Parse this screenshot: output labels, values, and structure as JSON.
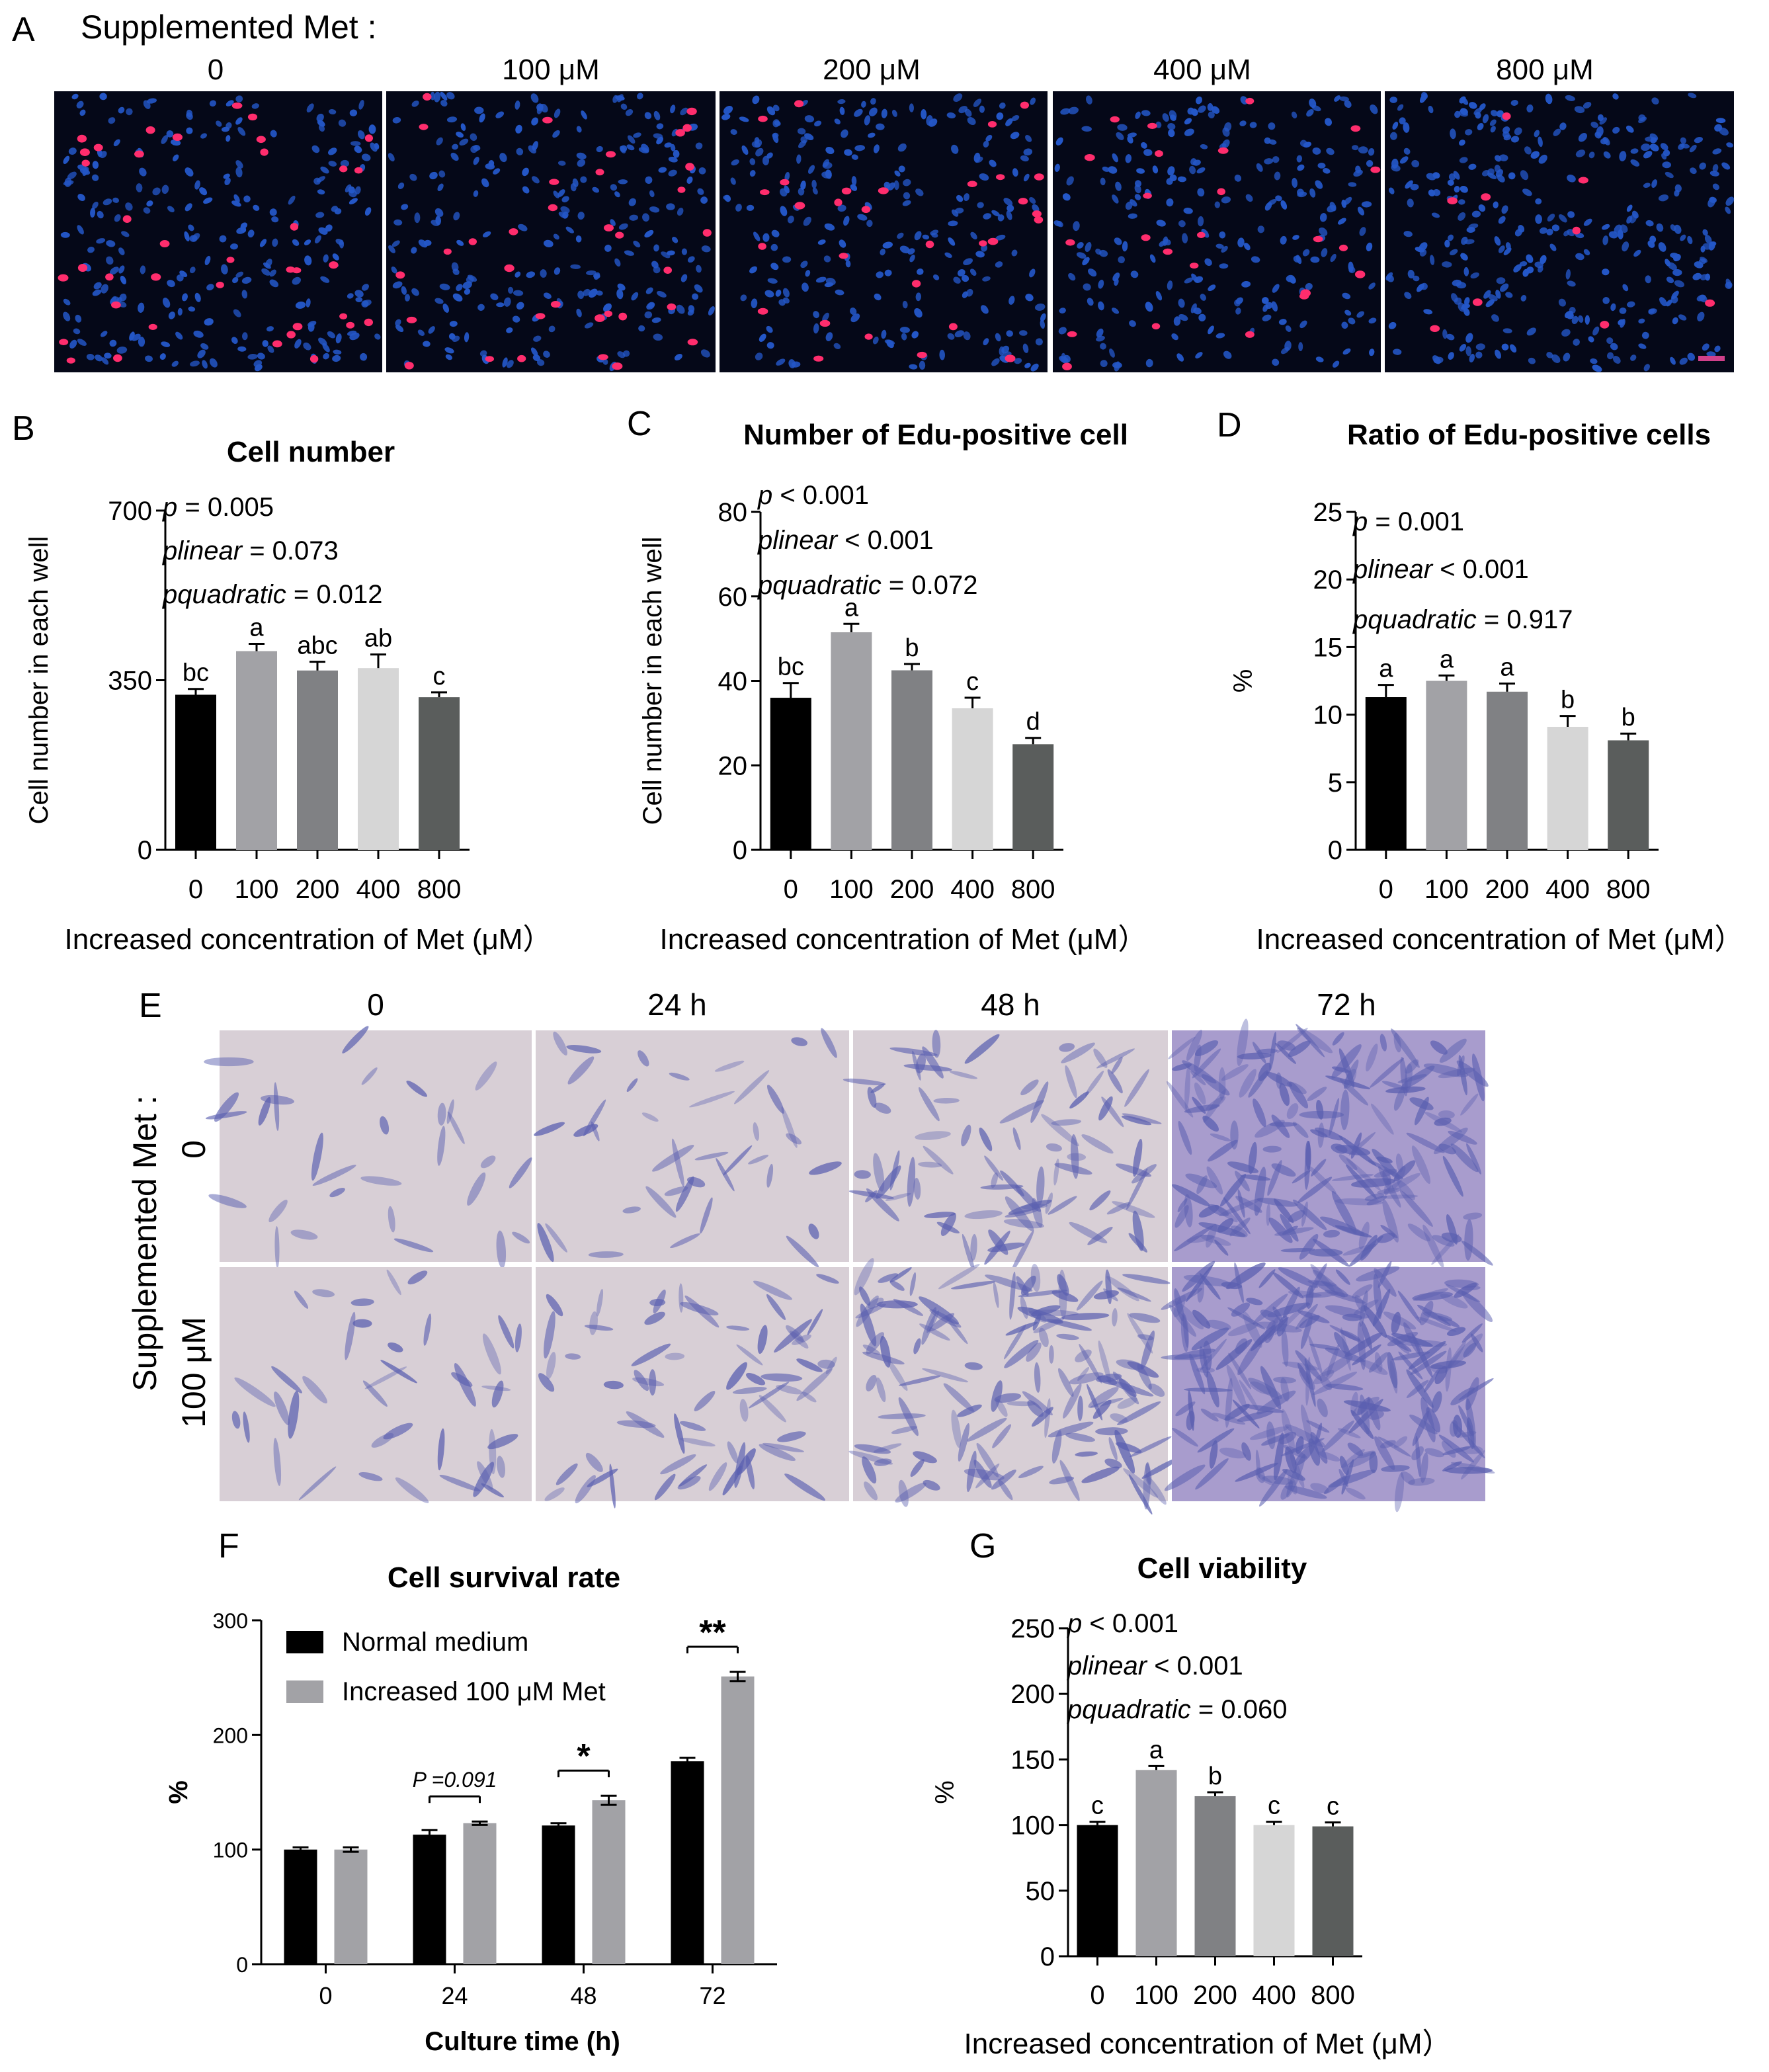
{
  "panel_a": {
    "letter": "A",
    "header": "Supplemented Met :",
    "columns": [
      "0",
      "100 μM",
      "200 μM",
      "400  μM",
      "800 μM"
    ],
    "colors": {
      "background": "#050818",
      "nuclei": "#2457c8",
      "edu": "#ff2d6d"
    }
  },
  "panel_e": {
    "letter": "E",
    "columns": [
      "0",
      "24 h",
      "48  h",
      "72 h"
    ],
    "row_header": "Supplemented Met :",
    "rows": [
      "0",
      "100 μM"
    ],
    "colors": {
      "background": "#d8cfd6",
      "cells": "#5a5fb0"
    }
  },
  "chart_data": [
    {
      "id": "B",
      "letter": "B",
      "type": "bar",
      "title": "Cell number",
      "ylabel": "Cell number in each well",
      "xlabel": "Increased concentration of  Met (μM）",
      "categories": [
        "0",
        "100",
        "200",
        "400",
        "800"
      ],
      "values": [
        320,
        410,
        370,
        375,
        315
      ],
      "errors": [
        12,
        15,
        18,
        28,
        10
      ],
      "letters": [
        "bc",
        "a",
        "abc",
        "ab",
        "c"
      ],
      "ylim": [
        0,
        700
      ],
      "yticks": [
        "0",
        "350",
        "700"
      ],
      "stats": [
        {
          "name": "p",
          "value": " = 0.005"
        },
        {
          "name": "plinear",
          "value": " = 0.073"
        },
        {
          "name": "pquadratic",
          "value": " = 0.012"
        }
      ],
      "bar_colors": [
        "#000000",
        "#a2a2a6",
        "#808184",
        "#d6d6d6",
        "#5a5d5c"
      ]
    },
    {
      "id": "C",
      "letter": "C",
      "type": "bar",
      "title": "Number of Edu-positive cell",
      "ylabel": "Cell number in each well",
      "xlabel": "Increased concentration of  Met (μM）",
      "categories": [
        "0",
        "100",
        "200",
        "400",
        "800"
      ],
      "values": [
        36,
        51.5,
        42.5,
        33.5,
        25
      ],
      "errors": [
        3.5,
        2,
        1.5,
        2.5,
        1.5
      ],
      "letters": [
        "bc",
        "a",
        "b",
        "c",
        "d"
      ],
      "ylim": [
        0,
        80
      ],
      "yticks": [
        "0",
        "20",
        "40",
        "60",
        "80"
      ],
      "stats": [
        {
          "name": "p",
          "value": " < 0.001"
        },
        {
          "name": "plinear",
          "value": " < 0.001"
        },
        {
          "name": "pquadratic",
          "value": " = 0.072"
        }
      ],
      "bar_colors": [
        "#000000",
        "#a2a2a6",
        "#808184",
        "#d6d6d6",
        "#5a5d5c"
      ]
    },
    {
      "id": "D",
      "letter": "D",
      "type": "bar",
      "title": "Ratio of Edu-positive cells",
      "ylabel": "%",
      "xlabel": "Increased concentration of  Met (μM）",
      "categories": [
        "0",
        "100",
        "200",
        "400",
        "800"
      ],
      "values": [
        11.3,
        12.5,
        11.7,
        9.1,
        8.1
      ],
      "errors": [
        0.9,
        0.4,
        0.6,
        0.8,
        0.5
      ],
      "letters": [
        "a",
        "a",
        "a",
        "b",
        "b"
      ],
      "ylim": [
        0,
        25
      ],
      "yticks": [
        "0",
        "5",
        "10",
        "15",
        "20",
        "25"
      ],
      "stats": [
        {
          "name": "p",
          "value": " = 0.001"
        },
        {
          "name": "plinear",
          "value": " < 0.001"
        },
        {
          "name": "pquadratic",
          "value": " = 0.917"
        }
      ],
      "bar_colors": [
        "#000000",
        "#a2a2a6",
        "#808184",
        "#d6d6d6",
        "#5a5d5c"
      ]
    },
    {
      "id": "F",
      "letter": "F",
      "type": "bar",
      "title": "Cell survival rate",
      "ylabel": "%",
      "xlabel": "Culture time (h)",
      "categories": [
        "0",
        "24",
        "48",
        "72"
      ],
      "series": [
        {
          "name": "Normal medium",
          "values": [
            100,
            113,
            121,
            177
          ],
          "errors": [
            2,
            4,
            2,
            3
          ],
          "color": "#000000"
        },
        {
          "name": "Increased 100 μM Met",
          "values": [
            100,
            123,
            143,
            251
          ],
          "errors": [
            2,
            1.5,
            4,
            4
          ],
          "color": "#a2a2a6"
        }
      ],
      "ylim": [
        0,
        300
      ],
      "yticks": [
        "0",
        "100",
        "200",
        "300"
      ],
      "comparisons": [
        {
          "index": 1,
          "label": "P =0.091"
        },
        {
          "index": 2,
          "label": "*"
        },
        {
          "index": 3,
          "label": "**"
        }
      ],
      "legend": "top-left"
    },
    {
      "id": "G",
      "letter": "G",
      "type": "bar",
      "title": "Cell  viability",
      "ylabel": "%",
      "xlabel": "Increased concentration of  Met (μM）",
      "categories": [
        "0",
        "100",
        "200",
        "400",
        "800"
      ],
      "values": [
        100,
        142,
        122,
        100,
        99
      ],
      "errors": [
        2.5,
        3,
        3,
        2.5,
        3
      ],
      "letters": [
        "c",
        "a",
        "b",
        "c",
        "c"
      ],
      "ylim": [
        0,
        250
      ],
      "yticks": [
        "0",
        "50",
        "100",
        "150",
        "200",
        "250"
      ],
      "stats": [
        {
          "name": "p",
          "value": " < 0.001"
        },
        {
          "name": "plinear",
          "value": " < 0.001"
        },
        {
          "name": "pquadratic",
          "value": " = 0.060"
        }
      ],
      "bar_colors": [
        "#000000",
        "#a2a2a6",
        "#808184",
        "#d6d6d6",
        "#5a5d5c"
      ]
    }
  ]
}
